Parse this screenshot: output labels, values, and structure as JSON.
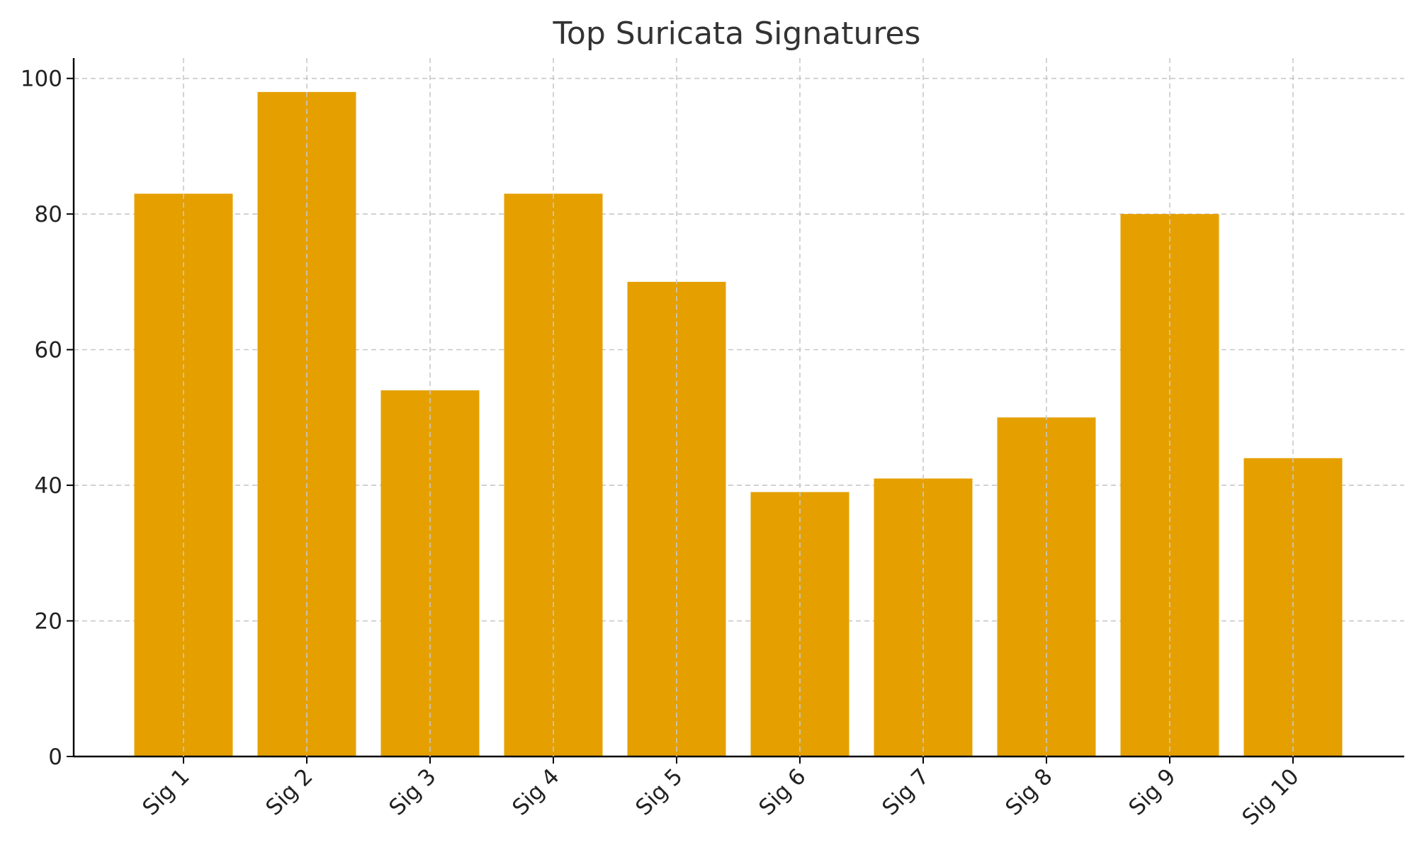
{
  "chart_data": {
    "type": "bar",
    "title": "Top Suricata Signatures",
    "xlabel": "",
    "ylabel": "",
    "categories": [
      "Sig 1",
      "Sig 2",
      "Sig 3",
      "Sig 4",
      "Sig 5",
      "Sig 6",
      "Sig 7",
      "Sig 8",
      "Sig 9",
      "Sig 10"
    ],
    "values": [
      83,
      98,
      54,
      83,
      70,
      39,
      41,
      50,
      80,
      44
    ],
    "ylim": [
      0,
      103
    ],
    "yticks": [
      0,
      20,
      40,
      60,
      80,
      100
    ],
    "grid": true,
    "bar_color": "#E5A000",
    "tick_label_rotation": "45 degrees"
  }
}
